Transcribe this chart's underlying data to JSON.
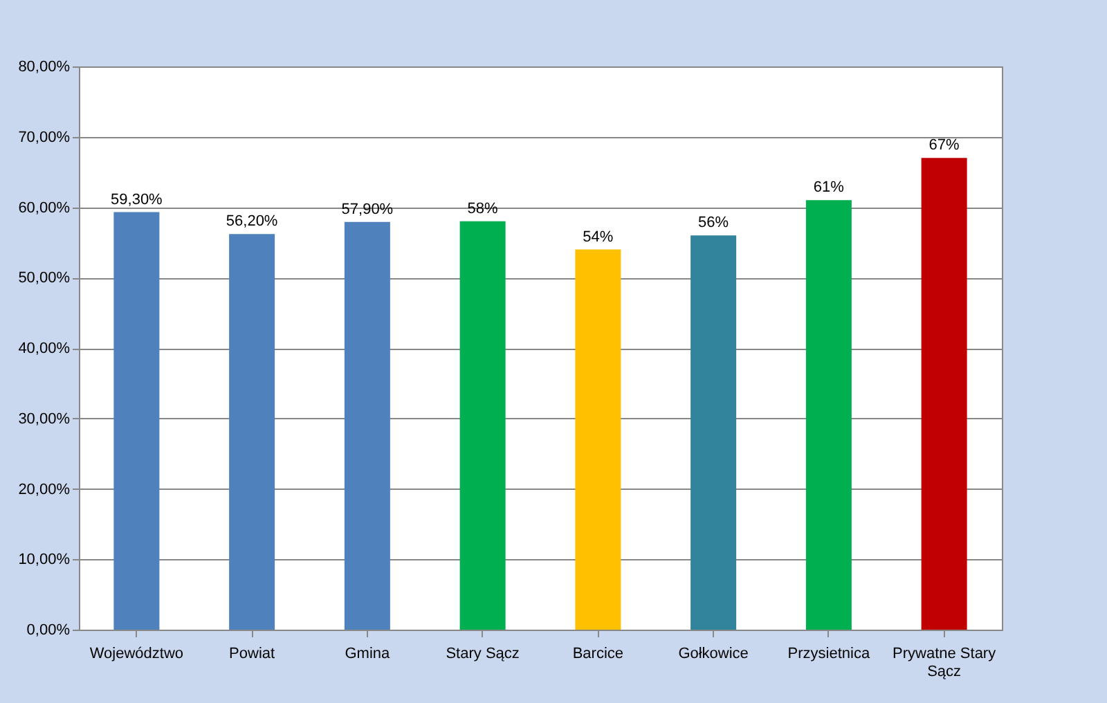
{
  "chart_data": {
    "type": "bar",
    "categories": [
      "Województwo",
      "Powiat",
      "Gmina",
      "Stary Sącz",
      "Barcice",
      "Gołkowice",
      "Przysietnica",
      "Prywatne Stary Sącz"
    ],
    "values": [
      59.3,
      56.2,
      57.9,
      58,
      54,
      56,
      61,
      67
    ],
    "colors": [
      "#4f81bd",
      "#4f81bd",
      "#4f81bd",
      "#00b050",
      "#ffc000",
      "#31849b",
      "#00b050",
      "#c00000"
    ],
    "value_labels": [
      "59,30%",
      "56,20%",
      "57,90%",
      "58%",
      "54%",
      "56%",
      "61%",
      "67%"
    ],
    "ylim": [
      0,
      80
    ],
    "yticks": [
      {
        "value": 0,
        "label": "0,00%"
      },
      {
        "value": 10,
        "label": "10,00%"
      },
      {
        "value": 20,
        "label": "20,00%"
      },
      {
        "value": 30,
        "label": "30,00%"
      },
      {
        "value": 40,
        "label": "40,00%"
      },
      {
        "value": 50,
        "label": "50,00%"
      },
      {
        "value": 60,
        "label": "60,00%"
      },
      {
        "value": 70,
        "label": "70,00%"
      },
      {
        "value": 80,
        "label": "80,00%"
      }
    ],
    "grid": "y"
  }
}
